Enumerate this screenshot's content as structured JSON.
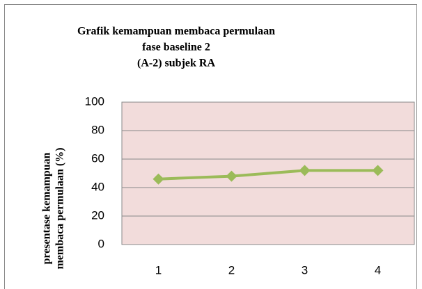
{
  "chart_data": {
    "type": "line",
    "title": [
      "Grafik kemampuan membaca permulaan",
      "fase baseline 2",
      "(A-2) subjek RA"
    ],
    "y_label": [
      "presentase kemampuan",
      "membaca permulaan (%)"
    ],
    "categories": [
      "1",
      "2",
      "3",
      "4"
    ],
    "series": [
      {
        "name": "subjek RA",
        "color": "#9bbb59",
        "values": [
          46,
          48,
          52,
          52
        ]
      }
    ],
    "ylim": [
      0,
      100
    ],
    "yticks": [
      0,
      20,
      40,
      60,
      80,
      100
    ],
    "grid": true,
    "plot_background": "#f2dcdb"
  }
}
